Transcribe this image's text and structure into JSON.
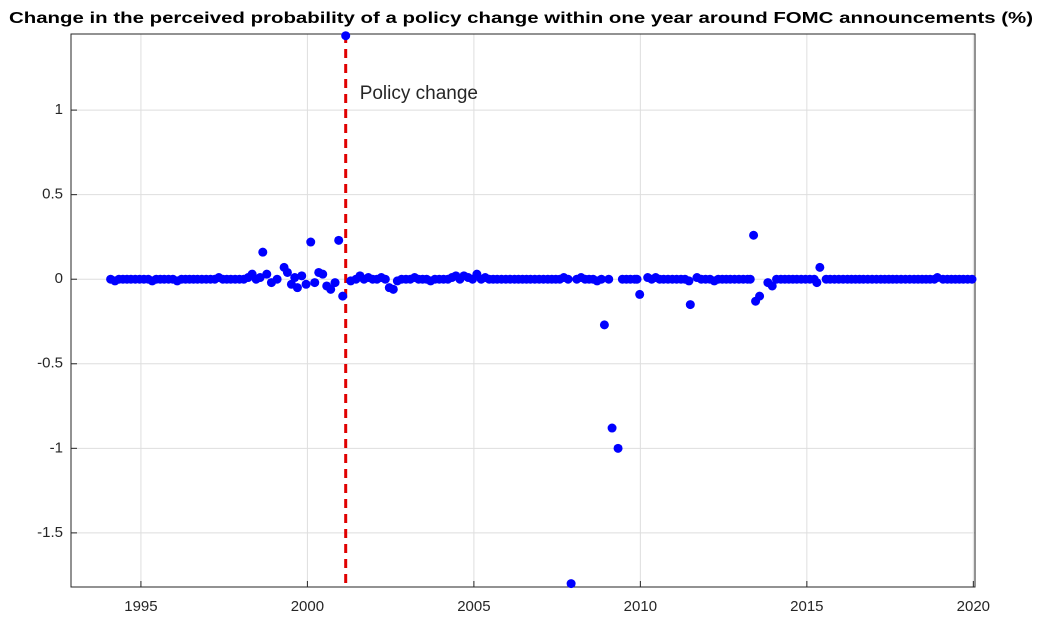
{
  "chart_data": {
    "type": "scatter",
    "title": "Change in the perceived probability of a policy change within one year around FOMC announcements (%)",
    "color": "#0000ff",
    "grid": true,
    "xlim": [
      1992.9,
      2020.05
    ],
    "ylim": [
      -1.82,
      1.45
    ],
    "xticks": [
      1995,
      2000,
      2005,
      2010,
      2015,
      2020
    ],
    "yticks": [
      -1.5,
      -1,
      -0.5,
      0,
      0.5,
      1
    ],
    "vline": {
      "x": 2001.15,
      "label": "Policy change",
      "color": "#e00000"
    },
    "x": [
      1994.09,
      1994.22,
      1994.34,
      1994.46,
      1994.58,
      1994.7,
      1994.83,
      1994.96,
      1995.09,
      1995.22,
      1995.34,
      1995.46,
      1995.58,
      1995.7,
      1995.83,
      1995.96,
      1996.09,
      1996.22,
      1996.34,
      1996.46,
      1996.58,
      1996.7,
      1996.83,
      1996.96,
      1997.09,
      1997.22,
      1997.34,
      1997.46,
      1997.58,
      1997.7,
      1997.83,
      1997.96,
      1998.09,
      1998.22,
      1998.34,
      1998.46,
      1998.58,
      1998.66,
      1998.78,
      1998.92,
      1999.09,
      1999.3,
      1999.4,
      1999.52,
      1999.62,
      1999.7,
      1999.83,
      1999.96,
      2000.1,
      2000.22,
      2000.34,
      2000.46,
      2000.58,
      2000.7,
      2000.83,
      2000.94,
      2001.06,
      2001.15,
      2001.3,
      2001.46,
      2001.58,
      2001.7,
      2001.83,
      2001.96,
      2002.09,
      2002.22,
      2002.34,
      2002.46,
      2002.58,
      2002.7,
      2002.83,
      2002.96,
      2003.09,
      2003.22,
      2003.34,
      2003.46,
      2003.58,
      2003.7,
      2003.83,
      2003.96,
      2004.09,
      2004.22,
      2004.34,
      2004.46,
      2004.58,
      2004.7,
      2004.83,
      2004.96,
      2005.09,
      2005.22,
      2005.34,
      2005.46,
      2005.58,
      2005.7,
      2005.83,
      2005.96,
      2006.09,
      2006.22,
      2006.34,
      2006.46,
      2006.58,
      2006.7,
      2006.83,
      2006.96,
      2007.09,
      2007.22,
      2007.34,
      2007.46,
      2007.58,
      2007.7,
      2007.83,
      2007.92,
      2008.09,
      2008.22,
      2008.34,
      2008.46,
      2008.58,
      2008.7,
      2008.83,
      2008.92,
      2009.05,
      2009.15,
      2009.33,
      2009.46,
      2009.58,
      2009.7,
      2009.83,
      2009.9,
      2009.98,
      2010.22,
      2010.34,
      2010.46,
      2010.58,
      2010.7,
      2010.83,
      2010.96,
      2011.09,
      2011.22,
      2011.34,
      2011.46,
      2011.5,
      2011.7,
      2011.83,
      2011.96,
      2012.09,
      2012.22,
      2012.34,
      2012.46,
      2012.58,
      2012.7,
      2012.83,
      2012.96,
      2013.09,
      2013.22,
      2013.3,
      2013.4,
      2013.46,
      2013.58,
      2013.83,
      2013.96,
      2014.09,
      2014.22,
      2014.34,
      2014.46,
      2014.58,
      2014.7,
      2014.83,
      2014.96,
      2015.09,
      2015.22,
      2015.3,
      2015.39,
      2015.58,
      2015.7,
      2015.83,
      2015.96,
      2016.09,
      2016.22,
      2016.34,
      2016.46,
      2016.58,
      2016.7,
      2016.83,
      2016.96,
      2017.09,
      2017.22,
      2017.34,
      2017.46,
      2017.58,
      2017.7,
      2017.83,
      2017.96,
      2018.09,
      2018.22,
      2018.34,
      2018.46,
      2018.58,
      2018.7,
      2018.83,
      2018.92,
      2019.09,
      2019.22,
      2019.34,
      2019.46,
      2019.58,
      2019.7,
      2019.83,
      2019.96
    ],
    "values": [
      0,
      -0.01,
      0,
      0,
      0,
      0,
      0,
      0,
      0,
      0,
      -0.01,
      0,
      0,
      0,
      0,
      0,
      -0.01,
      0,
      0,
      0,
      0,
      0,
      0,
      0,
      0,
      0,
      0.01,
      0,
      0,
      0,
      0,
      0,
      0,
      0.01,
      0.03,
      0,
      0.01,
      0.16,
      0.03,
      -0.02,
      0,
      0.07,
      0.04,
      -0.03,
      0.01,
      -0.05,
      0.02,
      -0.03,
      0.22,
      -0.02,
      0.04,
      0.03,
      -0.04,
      -0.06,
      -0.02,
      0.23,
      -0.1,
      1.44,
      -0.01,
      0,
      0.02,
      0,
      0.01,
      0,
      0,
      0.01,
      0,
      -0.05,
      -0.06,
      -0.01,
      0,
      0,
      0,
      0.01,
      0,
      0,
      0,
      -0.01,
      0,
      0,
      0,
      0,
      0.01,
      0.02,
      0,
      0.02,
      0.01,
      0,
      0.03,
      0,
      0.01,
      0,
      0,
      0,
      0,
      0,
      0,
      0,
      0,
      0,
      0,
      0,
      0,
      0,
      0,
      0,
      0,
      0,
      0,
      0.01,
      0,
      -1.8,
      0,
      0.01,
      0,
      0,
      0,
      -0.01,
      0,
      -0.27,
      0,
      -0.88,
      -1.0,
      0,
      0,
      0,
      0,
      0,
      -0.09,
      0.01,
      0,
      0.01,
      0,
      0,
      0,
      0,
      0,
      0,
      0,
      -0.01,
      -0.15,
      0.01,
      0,
      0,
      0,
      -0.01,
      0,
      0,
      0,
      0,
      0,
      0,
      0,
      0,
      0,
      0.26,
      -0.13,
      -0.1,
      -0.02,
      -0.04,
      0,
      0,
      0,
      0,
      0,
      0,
      0,
      0,
      0,
      0,
      -0.02,
      0.07,
      0,
      0,
      0,
      0,
      0,
      0,
      0,
      0,
      0,
      0,
      0,
      0,
      0,
      0,
      0,
      0,
      0,
      0,
      0,
      0,
      0,
      0,
      0,
      0,
      0,
      0,
      0,
      0.01,
      0,
      0,
      0,
      0,
      0,
      0,
      0,
      0
    ]
  }
}
